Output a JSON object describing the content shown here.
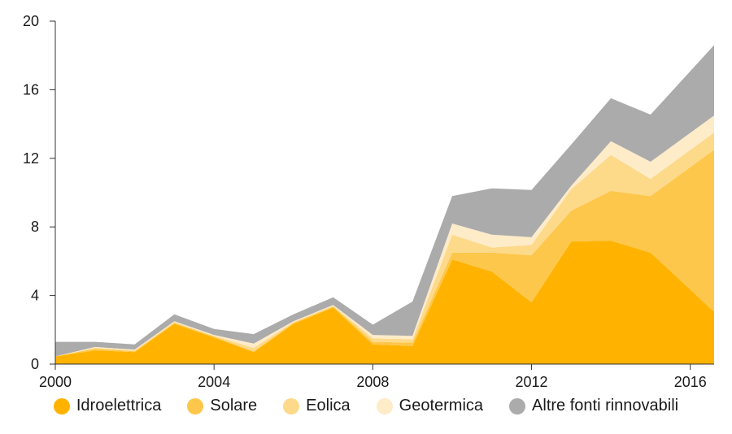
{
  "chart_data": {
    "type": "area",
    "stacked": true,
    "x": [
      2000,
      2001,
      2002,
      2003,
      2004,
      2005,
      2006,
      2007,
      2008,
      2009,
      2010,
      2011,
      2012,
      2013,
      2014,
      2015,
      2016.6
    ],
    "series": [
      {
        "name": "Idroelettrica",
        "color": "#FFB300",
        "values": [
          0.45,
          0.8,
          0.7,
          2.35,
          1.55,
          0.7,
          2.35,
          3.3,
          1.15,
          1.05,
          6.1,
          5.4,
          3.6,
          7.15,
          7.2,
          6.5,
          3.05
        ]
      },
      {
        "name": "Solare",
        "color": "#FDC74B",
        "values": [
          0.0,
          0.1,
          0.05,
          0.05,
          0.05,
          0.05,
          0.05,
          0.05,
          0.15,
          0.2,
          0.4,
          1.1,
          2.75,
          1.8,
          2.9,
          3.3,
          9.45
        ]
      },
      {
        "name": "Eolica",
        "color": "#FDD98A",
        "values": [
          0.0,
          0.05,
          0.05,
          0.05,
          0.05,
          0.2,
          0.05,
          0.05,
          0.2,
          0.2,
          1.05,
          0.3,
          0.6,
          1.25,
          2.1,
          1.0,
          1.0
        ]
      },
      {
        "name": "Geotermica",
        "color": "#FEEBC8",
        "values": [
          0.0,
          0.05,
          0.05,
          0.05,
          0.05,
          0.25,
          0.05,
          0.05,
          0.2,
          0.2,
          0.65,
          0.75,
          0.45,
          0.2,
          0.8,
          1.0,
          1.0
        ]
      },
      {
        "name": "Altre fonti rinnovabili",
        "color": "#ABABAB",
        "values": [
          0.85,
          0.3,
          0.3,
          0.4,
          0.35,
          0.55,
          0.4,
          0.45,
          0.6,
          2.0,
          1.6,
          2.7,
          2.75,
          2.4,
          2.5,
          2.75,
          4.1
        ]
      }
    ],
    "xticks": [
      "2000",
      "2004",
      "2008",
      "2012",
      "2016"
    ],
    "yticks": [
      "0",
      "4",
      "8",
      "12",
      "16",
      "20"
    ],
    "xlim": [
      2000,
      2016.6
    ],
    "ylim": [
      0,
      20
    ],
    "legend_position": "bottom",
    "grid": false
  }
}
